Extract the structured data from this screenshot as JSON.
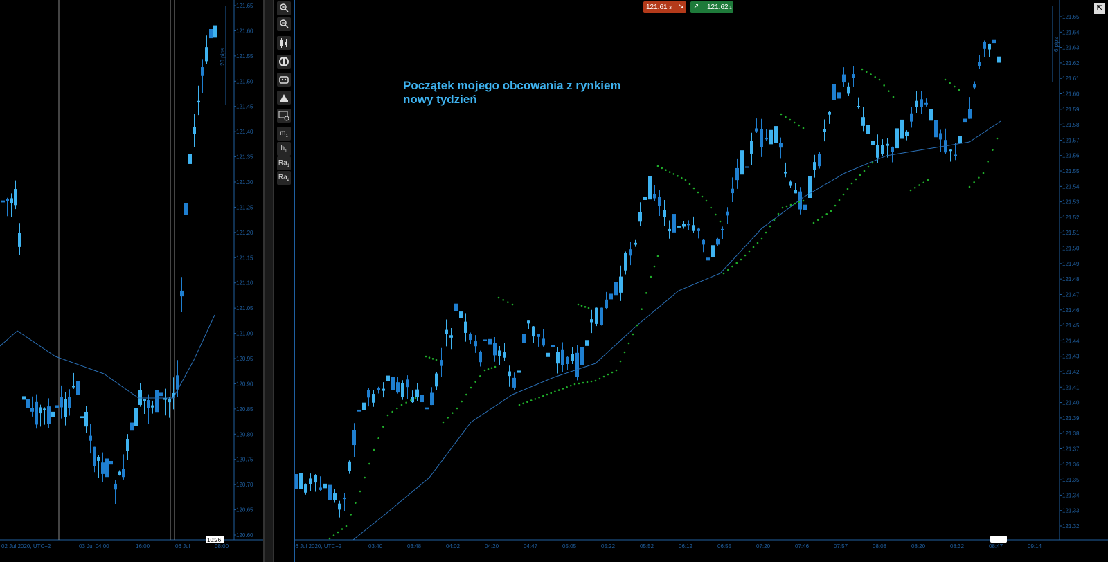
{
  "left_chart": {
    "price_ticks": [
      "121.65",
      "121.60",
      "121.55",
      "121.50",
      "121.45",
      "121.40",
      "121.35",
      "121.30",
      "121.25",
      "121.20",
      "121.15",
      "121.10",
      "121.05",
      "121.00",
      "120.95",
      "120.90",
      "120.85",
      "120.80",
      "120.75",
      "120.70",
      "120.65",
      "120.60"
    ],
    "time_ticks": [
      "02 Jul 2020, UTC+2",
      "03 Jul 04:00",
      "16:00",
      "06 Jul",
      "08:00"
    ],
    "range_label": "20 pips",
    "cursor_time": "10:26"
  },
  "main_chart": {
    "note_line1": "Początek mojego obcowania z rynkiem",
    "note_line2": "nowy tydzień",
    "bid": "121.61",
    "bid_suffix": "3",
    "ask": "121.62",
    "ask_suffix": "1",
    "range_label": "6 pips",
    "price_ticks": [
      "121.65",
      "121.64",
      "121.63",
      "121.62",
      "121.61",
      "121.60",
      "121.59",
      "121.58",
      "121.57",
      "121.56",
      "121.55",
      "121.54",
      "121.53",
      "121.52",
      "121.51",
      "121.50",
      "121.49",
      "121.48",
      "121.47",
      "121.46",
      "121.45",
      "121.44",
      "121.43",
      "121.42",
      "121.41",
      "121.40",
      "121.39",
      "121.38",
      "121.37",
      "121.36",
      "121.35",
      "121.34",
      "121.33",
      "121.32"
    ],
    "time_ticks": [
      "06 Jul 2020, UTC+2",
      "03:40",
      "03:48",
      "04:02",
      "04:20",
      "04:47",
      "05:05",
      "05:22",
      "05:52",
      "06:12",
      "06:55",
      "07:20",
      "07:46",
      "07:57",
      "08:08",
      "08:20",
      "08:32",
      "08:47",
      "09:14"
    ]
  },
  "toolbar": {
    "zoom_in_icon": "zoom-in-icon",
    "zoom_out_icon": "zoom-out-icon",
    "m1": "m",
    "m1_sub": "1",
    "h1": "h",
    "h1_sub": "1",
    "ra1": "Ra",
    "ra1_sub": "1",
    "ra4": "Ra",
    "ra4_sub": "4"
  },
  "colors": {
    "bull": "#3fb3f0",
    "bear": "#1f7fd0",
    "ma": "#2a6fb5",
    "sar": "#1fae2a",
    "axis": "#1f5fa0",
    "note": "#3fb3f0"
  }
}
